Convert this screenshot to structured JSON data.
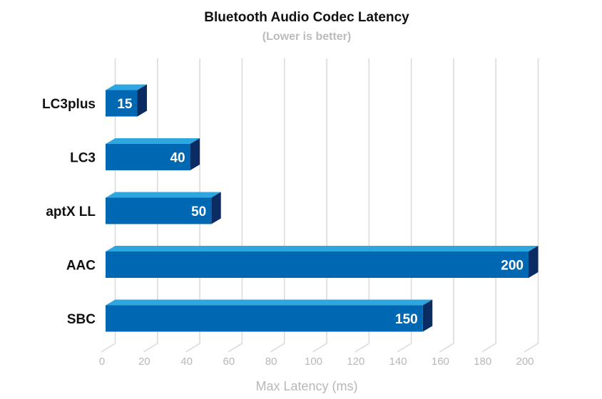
{
  "chart_data": {
    "type": "bar",
    "orientation": "horizontal",
    "title": "Bluetooth Audio Codec Latency",
    "subtitle": "(Lower is better)",
    "categories": [
      "LC3plus",
      "LC3",
      "aptX LL",
      "AAC",
      "SBC"
    ],
    "values": [
      15,
      40,
      50,
      200,
      150
    ],
    "xlabel": "Max Latency (ms)",
    "ylabel": "",
    "xlim": [
      0,
      200
    ],
    "xticks": [
      "0",
      "20",
      "40",
      "60",
      "80",
      "100",
      "120",
      "140",
      "160",
      "180",
      "200"
    ],
    "grid": true,
    "colors": {
      "front": "#0068b3",
      "top": "#2ea6e0",
      "side": "#0b2b63",
      "grid": "#d9d9d9"
    }
  }
}
